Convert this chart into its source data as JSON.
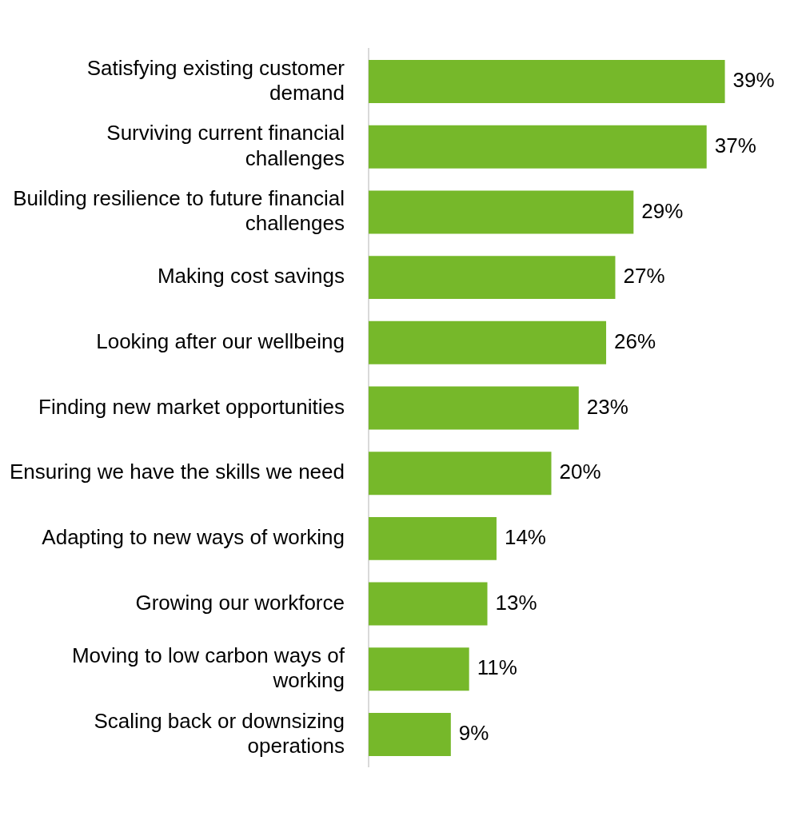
{
  "chart_data": {
    "type": "bar",
    "orientation": "horizontal",
    "categories": [
      "Satisfying existing customer demand",
      "Surviving current financial challenges",
      "Building resilience to future financial challenges",
      "Making cost savings",
      "Looking after our wellbeing",
      "Finding new market opportunities",
      "Ensuring we have the skills we need",
      "Adapting to new ways of working",
      "Growing our workforce",
      "Moving to low carbon ways of working",
      "Scaling back or downsizing operations"
    ],
    "values": [
      39,
      37,
      29,
      27,
      26,
      23,
      20,
      14,
      13,
      11,
      9
    ],
    "value_labels": [
      "39%",
      "37%",
      "29%",
      "27%",
      "26%",
      "23%",
      "20%",
      "14%",
      "13%",
      "11%",
      "9%"
    ],
    "color": "#76b82a",
    "legend": false,
    "tick_labels": "y"
  }
}
